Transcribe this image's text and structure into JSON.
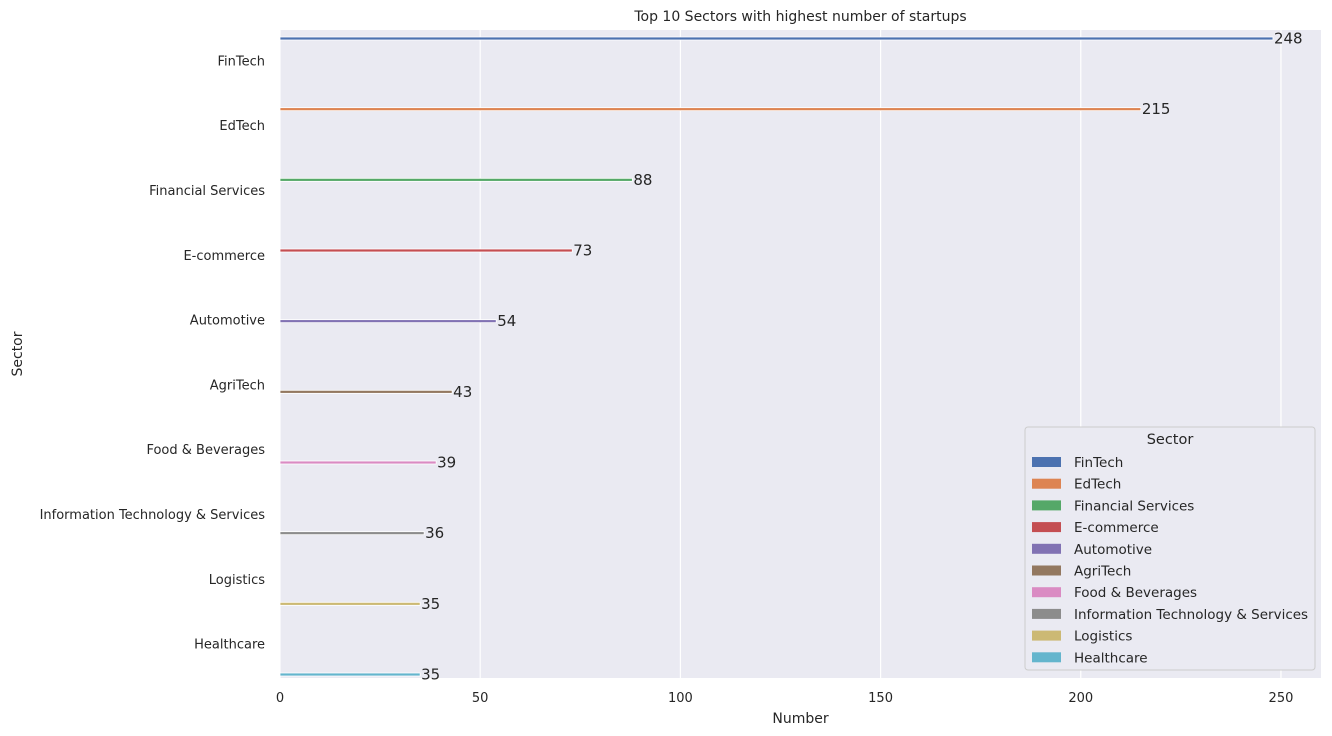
{
  "chart_data": {
    "type": "bar",
    "orientation": "horizontal",
    "title": "Top 10 Sectors with highest number of startups",
    "xlabel": "Number",
    "ylabel": "Sector",
    "xlim": [
      0,
      260
    ],
    "xticks": [
      0,
      50,
      100,
      150,
      200,
      250
    ],
    "grid": true,
    "legend": {
      "title": "Sector",
      "placement": "lower-right"
    },
    "categories": [
      "FinTech",
      "EdTech",
      "Financial Services",
      "E-commerce",
      "Automotive",
      "AgriTech",
      "Food & Beverages",
      "Information Technology & Services",
      "Logistics",
      "Healthcare"
    ],
    "values": [
      248,
      215,
      88,
      73,
      54,
      43,
      39,
      36,
      35,
      35
    ],
    "colors": [
      "#4c72b0",
      "#dd8452",
      "#55a868",
      "#c44e52",
      "#8172b3",
      "#937860",
      "#da8bc3",
      "#8c8c8c",
      "#ccb974",
      "#64b5cd"
    ],
    "background_color": "#eaeaf2",
    "grid_color": "#ffffff"
  }
}
